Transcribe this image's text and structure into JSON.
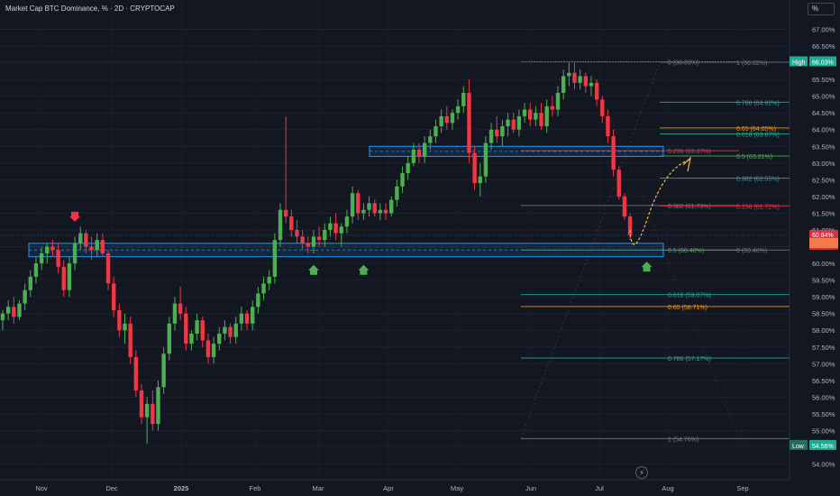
{
  "title": "Market Cap BTC Dominance, % · 2D · CRYPTOCAP",
  "unit_label": "%",
  "colors": {
    "background": "#131722",
    "up": "#26a69a",
    "up_bright": "#4caf50",
    "down": "#f23645",
    "zone": "#2196f3",
    "fib_gray": "#787b86",
    "fib_teal": "#22ab94",
    "fib_orange": "#ff9800",
    "fib_red": "#f23645",
    "curve": "#f2b94b"
  },
  "chart_data": {
    "type": "candlestick",
    "ylim": [
      53.8,
      67.5
    ],
    "yticks": [
      "54.00%",
      "54.50%",
      "55.00%",
      "55.50%",
      "56.00%",
      "56.50%",
      "57.00%",
      "57.50%",
      "58.00%",
      "58.50%",
      "59.00%",
      "59.50%",
      "60.00%",
      "60.50%",
      "61.00%",
      "61.50%",
      "62.00%",
      "62.50%",
      "63.00%",
      "63.50%",
      "64.00%",
      "64.50%",
      "65.00%",
      "65.50%",
      "66.00%",
      "66.50%",
      "67.00%"
    ],
    "xticks": [
      "Nov",
      "Dec",
      "2025",
      "Feb",
      "Mar",
      "Apr",
      "May",
      "Jun",
      "Jul",
      "Aug",
      "Sep"
    ],
    "price_labels": {
      "high": {
        "label": "High",
        "value": "66.03%",
        "y": 66.03
      },
      "low": {
        "label": "Low",
        "value": "54.56%",
        "y": 54.56
      },
      "last": {
        "value": "60.84%",
        "y": 60.84
      }
    },
    "candles": [
      {
        "o": 58.3,
        "h": 58.6,
        "l": 58.0,
        "c": 58.5
      },
      {
        "o": 58.5,
        "h": 58.9,
        "l": 58.3,
        "c": 58.7
      },
      {
        "o": 58.7,
        "h": 59.0,
        "l": 58.2,
        "c": 58.4
      },
      {
        "o": 58.4,
        "h": 58.9,
        "l": 58.3,
        "c": 58.8
      },
      {
        "o": 58.8,
        "h": 59.4,
        "l": 58.6,
        "c": 59.2
      },
      {
        "o": 59.2,
        "h": 59.8,
        "l": 59.0,
        "c": 59.6
      },
      {
        "o": 59.6,
        "h": 60.2,
        "l": 59.4,
        "c": 60.0
      },
      {
        "o": 60.0,
        "h": 60.5,
        "l": 59.8,
        "c": 60.3
      },
      {
        "o": 60.3,
        "h": 60.6,
        "l": 60.0,
        "c": 60.5
      },
      {
        "o": 60.5,
        "h": 60.7,
        "l": 60.2,
        "c": 60.4
      },
      {
        "o": 60.4,
        "h": 60.6,
        "l": 59.7,
        "c": 59.9
      },
      {
        "o": 59.9,
        "h": 60.1,
        "l": 59.0,
        "c": 59.2
      },
      {
        "o": 59.2,
        "h": 60.2,
        "l": 59.0,
        "c": 60.0
      },
      {
        "o": 60.0,
        "h": 60.8,
        "l": 59.8,
        "c": 60.6
      },
      {
        "o": 60.6,
        "h": 61.1,
        "l": 60.4,
        "c": 60.9
      },
      {
        "o": 60.9,
        "h": 61.0,
        "l": 60.3,
        "c": 60.5
      },
      {
        "o": 60.5,
        "h": 60.8,
        "l": 60.1,
        "c": 60.4
      },
      {
        "o": 60.4,
        "h": 60.9,
        "l": 60.2,
        "c": 60.7
      },
      {
        "o": 60.7,
        "h": 60.9,
        "l": 60.2,
        "c": 60.3
      },
      {
        "o": 60.3,
        "h": 60.4,
        "l": 59.2,
        "c": 59.4
      },
      {
        "o": 59.4,
        "h": 59.6,
        "l": 58.4,
        "c": 58.6
      },
      {
        "o": 58.6,
        "h": 58.8,
        "l": 57.8,
        "c": 58.0
      },
      {
        "o": 58.0,
        "h": 58.5,
        "l": 57.6,
        "c": 58.2
      },
      {
        "o": 58.2,
        "h": 58.4,
        "l": 57.0,
        "c": 57.2
      },
      {
        "o": 57.2,
        "h": 57.4,
        "l": 56.0,
        "c": 56.2
      },
      {
        "o": 56.2,
        "h": 56.4,
        "l": 55.2,
        "c": 55.4
      },
      {
        "o": 55.4,
        "h": 56.0,
        "l": 54.6,
        "c": 55.8
      },
      {
        "o": 55.8,
        "h": 56.2,
        "l": 55.0,
        "c": 55.2
      },
      {
        "o": 55.2,
        "h": 56.5,
        "l": 55.0,
        "c": 56.3
      },
      {
        "o": 56.3,
        "h": 57.5,
        "l": 56.1,
        "c": 57.3
      },
      {
        "o": 57.3,
        "h": 58.4,
        "l": 57.1,
        "c": 58.2
      },
      {
        "o": 58.2,
        "h": 59.0,
        "l": 58.0,
        "c": 58.8
      },
      {
        "o": 58.8,
        "h": 59.3,
        "l": 58.3,
        "c": 58.5
      },
      {
        "o": 58.5,
        "h": 58.7,
        "l": 57.4,
        "c": 57.6
      },
      {
        "o": 57.6,
        "h": 58.0,
        "l": 57.4,
        "c": 57.9
      },
      {
        "o": 57.9,
        "h": 58.5,
        "l": 57.7,
        "c": 58.3
      },
      {
        "o": 58.3,
        "h": 58.4,
        "l": 57.5,
        "c": 57.7
      },
      {
        "o": 57.7,
        "h": 57.9,
        "l": 57.0,
        "c": 57.2
      },
      {
        "o": 57.2,
        "h": 57.8,
        "l": 57.0,
        "c": 57.6
      },
      {
        "o": 57.6,
        "h": 58.1,
        "l": 57.4,
        "c": 57.9
      },
      {
        "o": 57.9,
        "h": 58.3,
        "l": 57.7,
        "c": 58.1
      },
      {
        "o": 58.1,
        "h": 58.2,
        "l": 57.6,
        "c": 57.8
      },
      {
        "o": 57.8,
        "h": 58.4,
        "l": 57.6,
        "c": 58.2
      },
      {
        "o": 58.2,
        "h": 58.7,
        "l": 58.0,
        "c": 58.5
      },
      {
        "o": 58.5,
        "h": 58.6,
        "l": 58.0,
        "c": 58.2
      },
      {
        "o": 58.2,
        "h": 58.9,
        "l": 58.0,
        "c": 58.7
      },
      {
        "o": 58.7,
        "h": 59.3,
        "l": 58.5,
        "c": 59.1
      },
      {
        "o": 59.1,
        "h": 59.6,
        "l": 58.9,
        "c": 59.4
      },
      {
        "o": 59.4,
        "h": 59.8,
        "l": 59.2,
        "c": 59.6
      },
      {
        "o": 59.6,
        "h": 60.9,
        "l": 59.4,
        "c": 60.7
      },
      {
        "o": 60.7,
        "h": 61.8,
        "l": 60.5,
        "c": 61.6
      },
      {
        "o": 61.6,
        "h": 64.4,
        "l": 61.2,
        "c": 61.4
      },
      {
        "o": 61.4,
        "h": 61.6,
        "l": 60.8,
        "c": 61.0
      },
      {
        "o": 61.0,
        "h": 61.3,
        "l": 60.6,
        "c": 60.8
      },
      {
        "o": 60.8,
        "h": 61.0,
        "l": 60.4,
        "c": 60.6
      },
      {
        "o": 60.6,
        "h": 60.8,
        "l": 60.3,
        "c": 60.5
      },
      {
        "o": 60.5,
        "h": 61.0,
        "l": 60.3,
        "c": 60.8
      },
      {
        "o": 60.8,
        "h": 61.1,
        "l": 60.5,
        "c": 60.7
      },
      {
        "o": 60.7,
        "h": 61.2,
        "l": 60.5,
        "c": 61.0
      },
      {
        "o": 61.0,
        "h": 61.4,
        "l": 60.8,
        "c": 61.2
      },
      {
        "o": 61.2,
        "h": 61.5,
        "l": 60.7,
        "c": 60.9
      },
      {
        "o": 60.9,
        "h": 61.2,
        "l": 60.5,
        "c": 61.1
      },
      {
        "o": 61.1,
        "h": 61.6,
        "l": 60.9,
        "c": 61.4
      },
      {
        "o": 61.4,
        "h": 62.3,
        "l": 61.2,
        "c": 62.1
      },
      {
        "o": 62.1,
        "h": 62.2,
        "l": 61.3,
        "c": 61.5
      },
      {
        "o": 61.5,
        "h": 61.8,
        "l": 61.3,
        "c": 61.6
      },
      {
        "o": 61.6,
        "h": 62.0,
        "l": 61.4,
        "c": 61.8
      },
      {
        "o": 61.8,
        "h": 61.9,
        "l": 61.4,
        "c": 61.5
      },
      {
        "o": 61.5,
        "h": 61.8,
        "l": 61.3,
        "c": 61.6
      },
      {
        "o": 61.6,
        "h": 61.8,
        "l": 61.3,
        "c": 61.5
      },
      {
        "o": 61.5,
        "h": 62.0,
        "l": 61.4,
        "c": 61.9
      },
      {
        "o": 61.9,
        "h": 62.5,
        "l": 61.7,
        "c": 62.3
      },
      {
        "o": 62.3,
        "h": 62.9,
        "l": 62.1,
        "c": 62.7
      },
      {
        "o": 62.7,
        "h": 63.2,
        "l": 62.5,
        "c": 63.0
      },
      {
        "o": 63.0,
        "h": 63.6,
        "l": 62.9,
        "c": 63.4
      },
      {
        "o": 63.4,
        "h": 63.6,
        "l": 63.0,
        "c": 63.2
      },
      {
        "o": 63.2,
        "h": 63.8,
        "l": 63.0,
        "c": 63.6
      },
      {
        "o": 63.6,
        "h": 64.0,
        "l": 63.4,
        "c": 63.8
      },
      {
        "o": 63.8,
        "h": 64.3,
        "l": 63.6,
        "c": 64.1
      },
      {
        "o": 64.1,
        "h": 64.6,
        "l": 63.9,
        "c": 64.4
      },
      {
        "o": 64.4,
        "h": 64.7,
        "l": 64.0,
        "c": 64.2
      },
      {
        "o": 64.2,
        "h": 64.6,
        "l": 64.0,
        "c": 64.5
      },
      {
        "o": 64.5,
        "h": 64.9,
        "l": 64.3,
        "c": 64.7
      },
      {
        "o": 64.7,
        "h": 65.3,
        "l": 64.5,
        "c": 65.1
      },
      {
        "o": 65.1,
        "h": 65.5,
        "l": 63.0,
        "c": 63.3
      },
      {
        "o": 63.3,
        "h": 63.5,
        "l": 62.2,
        "c": 62.4
      },
      {
        "o": 62.4,
        "h": 63.0,
        "l": 62.0,
        "c": 62.6
      },
      {
        "o": 62.6,
        "h": 63.8,
        "l": 62.4,
        "c": 63.6
      },
      {
        "o": 63.6,
        "h": 64.2,
        "l": 63.4,
        "c": 64.0
      },
      {
        "o": 64.0,
        "h": 64.4,
        "l": 63.6,
        "c": 63.8
      },
      {
        "o": 63.8,
        "h": 64.3,
        "l": 63.5,
        "c": 64.1
      },
      {
        "o": 64.1,
        "h": 64.5,
        "l": 63.8,
        "c": 64.3
      },
      {
        "o": 64.3,
        "h": 64.5,
        "l": 63.9,
        "c": 64.0
      },
      {
        "o": 64.0,
        "h": 64.6,
        "l": 63.8,
        "c": 64.4
      },
      {
        "o": 64.4,
        "h": 64.8,
        "l": 64.2,
        "c": 64.6
      },
      {
        "o": 64.6,
        "h": 64.8,
        "l": 64.1,
        "c": 64.3
      },
      {
        "o": 64.3,
        "h": 64.7,
        "l": 64.1,
        "c": 64.5
      },
      {
        "o": 64.5,
        "h": 64.8,
        "l": 64.0,
        "c": 64.1
      },
      {
        "o": 64.1,
        "h": 64.9,
        "l": 63.9,
        "c": 64.7
      },
      {
        "o": 64.7,
        "h": 65.0,
        "l": 64.4,
        "c": 64.6
      },
      {
        "o": 64.6,
        "h": 65.3,
        "l": 64.4,
        "c": 65.1
      },
      {
        "o": 65.1,
        "h": 65.8,
        "l": 64.9,
        "c": 65.6
      },
      {
        "o": 65.6,
        "h": 66.0,
        "l": 65.3,
        "c": 65.7
      },
      {
        "o": 65.7,
        "h": 66.0,
        "l": 65.2,
        "c": 65.4
      },
      {
        "o": 65.4,
        "h": 65.8,
        "l": 65.2,
        "c": 65.6
      },
      {
        "o": 65.6,
        "h": 65.7,
        "l": 65.1,
        "c": 65.3
      },
      {
        "o": 65.3,
        "h": 65.6,
        "l": 65.0,
        "c": 65.4
      },
      {
        "o": 65.4,
        "h": 65.5,
        "l": 64.7,
        "c": 64.9
      },
      {
        "o": 64.9,
        "h": 65.0,
        "l": 64.2,
        "c": 64.4
      },
      {
        "o": 64.4,
        "h": 64.6,
        "l": 63.6,
        "c": 63.8
      },
      {
        "o": 63.8,
        "h": 64.0,
        "l": 62.6,
        "c": 62.8
      },
      {
        "o": 62.8,
        "h": 62.9,
        "l": 61.9,
        "c": 62.0
      },
      {
        "o": 62.0,
        "h": 62.1,
        "l": 61.3,
        "c": 61.4
      },
      {
        "o": 61.4,
        "h": 61.5,
        "l": 60.7,
        "c": 60.84
      }
    ],
    "zones": [
      {
        "name": "support-zone",
        "from": 60.2,
        "to": 60.6
      },
      {
        "name": "resistance-zone",
        "from": 63.2,
        "to": 63.5
      }
    ],
    "fib_levels": [
      {
        "label": "0 (66.03%)",
        "value": 66.03,
        "color": "#787b86",
        "set": "A"
      },
      {
        "label": "1 (66.02%)",
        "value": 66.02,
        "color": "#787b86",
        "set": "B"
      },
      {
        "label": "0.786 (64.82%)",
        "value": 64.82,
        "color": "#22ab94",
        "set": "B"
      },
      {
        "label": "0.65 (64.05%)",
        "value": 64.05,
        "color": "#ff9800",
        "set": "B"
      },
      {
        "label": "0.618 (63.87%)",
        "value": 63.87,
        "color": "#22ab94",
        "set": "B"
      },
      {
        "label": "0.236 (63.37%)",
        "value": 63.37,
        "color": "#f23645",
        "set": "A"
      },
      {
        "label": "0.5 (63.21%)",
        "value": 63.21,
        "color": "#4caf50",
        "set": "B"
      },
      {
        "label": "0.382 (62.55%)",
        "value": 62.55,
        "color": "#22ab94",
        "set": "B"
      },
      {
        "label": "0.382 (61.73%)",
        "value": 61.73,
        "color": "#787b86",
        "set": "A"
      },
      {
        "label": "0.236 (61.72%)",
        "value": 61.72,
        "color": "#f23645",
        "set": "B"
      },
      {
        "label": "0.5 (60.40%)",
        "value": 60.4,
        "color": "#4caf50",
        "set": "A"
      },
      {
        "label": "0 (60.40%)",
        "value": 60.4,
        "color": "#787b86",
        "set": "B"
      },
      {
        "label": "0.618 (59.07%)",
        "value": 59.07,
        "color": "#22ab94",
        "set": "A"
      },
      {
        "label": "0.65 (58.71%)",
        "value": 58.71,
        "color": "#ff9800",
        "set": "A"
      },
      {
        "label": "0.786 (57.17%)",
        "value": 57.17,
        "color": "#22ab94",
        "set": "A"
      },
      {
        "label": "1 (54.76%)",
        "value": 54.76,
        "color": "#787b86",
        "set": "A"
      }
    ],
    "markers": [
      {
        "name": "down-arrow-marker",
        "candle": 13,
        "value": 61.3,
        "direction": "down",
        "color": "#f23645"
      },
      {
        "name": "up-arrow-marker",
        "candle": 56,
        "value": 59.9,
        "direction": "up",
        "color": "#4caf50"
      },
      {
        "name": "up-arrow-marker",
        "candle": 65,
        "value": 59.9,
        "direction": "up",
        "color": "#4caf50"
      },
      {
        "name": "up-arrow-marker",
        "candle": 116,
        "value": 60.0,
        "direction": "up",
        "color": "#4caf50"
      },
      {
        "name": "right-axis-arrow-green",
        "value": 63.21,
        "direction": "left",
        "color": "#4caf50"
      },
      {
        "name": "right-axis-arrow-red",
        "value": 62.55,
        "direction": "left",
        "color": "#f23645"
      },
      {
        "name": "right-axis-arrow-gray",
        "value": 61.72,
        "direction": "left",
        "color": "#787b86"
      }
    ]
  }
}
